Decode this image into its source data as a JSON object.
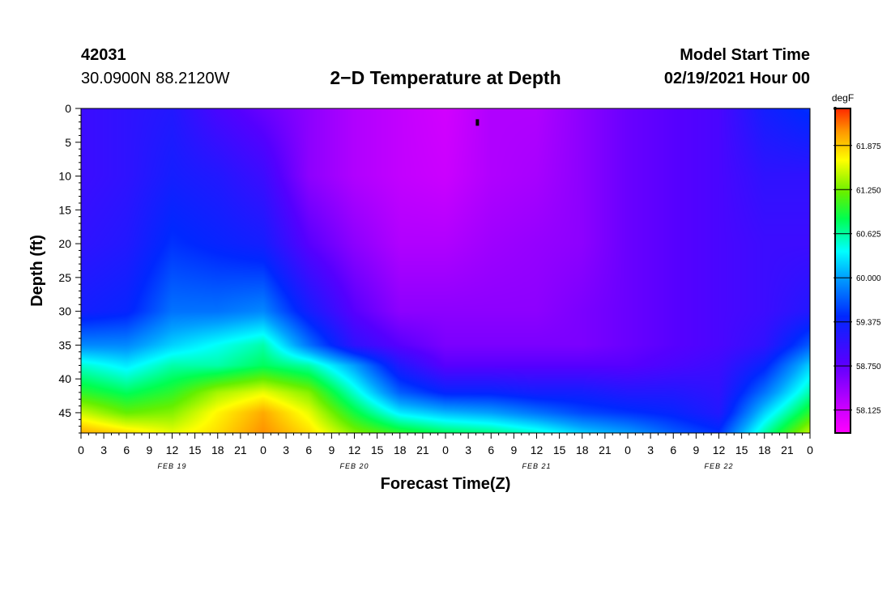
{
  "header": {
    "station_id": "42031",
    "station_location": "30.0900N 88.2120W",
    "title": "2−D Temperature at Depth",
    "start_label": "Model Start Time",
    "start_time": "02/19/2021 Hour 00"
  },
  "chart_data": {
    "type": "heatmap",
    "title": "2−D Temperature at Depth",
    "xlabel": "Forecast Time(Z)",
    "ylabel": "Depth (ft)",
    "x_hours_range": [
      0,
      96
    ],
    "x_tick_step_hours": 3,
    "x_tick_labels": [
      "0",
      "3",
      "6",
      "9",
      "12",
      "15",
      "18",
      "21",
      "0",
      "3",
      "6",
      "9",
      "12",
      "15",
      "18",
      "21",
      "0",
      "3",
      "6",
      "9",
      "12",
      "15",
      "18",
      "21",
      "0",
      "3",
      "6",
      "9",
      "12",
      "15",
      "18",
      "21",
      "0"
    ],
    "date_labels": [
      {
        "text": "FEB 19",
        "hour": 12
      },
      {
        "text": "FEB 20",
        "hour": 36
      },
      {
        "text": "FEB 21",
        "hour": 60
      },
      {
        "text": "FEB 22",
        "hour": 84
      }
    ],
    "y_range": [
      0,
      48
    ],
    "y_ticks": [
      0,
      5,
      10,
      15,
      20,
      25,
      30,
      35,
      40,
      45
    ],
    "colorbar": {
      "unit": "degF",
      "range": [
        57.8,
        62.4
      ],
      "tick_values": [
        58.125,
        58.75,
        59.375,
        60.0,
        60.625,
        61.25,
        61.875
      ],
      "tick_labels": [
        "58.125",
        "58.750",
        "59.375",
        "60.000",
        "60.625",
        "61.250",
        "61.875"
      ]
    },
    "grid_hours": [
      0,
      6,
      12,
      18,
      24,
      30,
      36,
      42,
      48,
      54,
      60,
      66,
      72,
      78,
      84,
      90,
      96
    ],
    "grid_depths": [
      0,
      10,
      20,
      30,
      35,
      38,
      42,
      45,
      48
    ],
    "values": [
      [
        59.0,
        59.1,
        59.2,
        58.9,
        58.7,
        58.5,
        58.3,
        58.2,
        58.1,
        58.3,
        58.3,
        58.5,
        58.7,
        58.8,
        58.9,
        59.3,
        59.5
      ],
      [
        59.0,
        59.1,
        59.3,
        59.2,
        59.0,
        58.5,
        58.3,
        58.2,
        58.15,
        58.3,
        58.35,
        58.5,
        58.7,
        58.8,
        58.9,
        59.1,
        59.1
      ],
      [
        59.1,
        59.2,
        59.5,
        59.4,
        59.3,
        58.8,
        58.5,
        58.3,
        58.3,
        58.4,
        58.45,
        58.5,
        58.7,
        58.8,
        58.9,
        59.0,
        59.0
      ],
      [
        59.3,
        59.4,
        59.8,
        59.8,
        59.9,
        59.3,
        58.8,
        58.5,
        58.5,
        58.5,
        58.5,
        58.6,
        58.7,
        58.8,
        58.9,
        59.0,
        59.2
      ],
      [
        59.9,
        59.9,
        60.2,
        60.4,
        60.6,
        59.8,
        59.1,
        58.8,
        58.6,
        58.6,
        58.6,
        58.6,
        58.7,
        58.8,
        58.9,
        59.1,
        59.7
      ],
      [
        60.5,
        60.3,
        60.6,
        60.6,
        60.8,
        60.6,
        60.0,
        59.2,
        58.8,
        58.8,
        58.8,
        58.8,
        58.8,
        58.9,
        59.0,
        59.4,
        60.2
      ],
      [
        61.0,
        60.8,
        61.0,
        61.4,
        61.6,
        61.3,
        60.5,
        59.7,
        59.4,
        59.4,
        59.3,
        59.3,
        59.2,
        59.2,
        59.1,
        59.8,
        60.6
      ],
      [
        61.5,
        61.2,
        61.3,
        61.7,
        62.0,
        61.6,
        60.9,
        60.3,
        60.1,
        60.0,
        59.8,
        59.6,
        59.5,
        59.4,
        59.2,
        60.2,
        61.0
      ],
      [
        62.0,
        61.8,
        61.6,
        61.8,
        62.1,
        61.8,
        61.3,
        61.0,
        60.8,
        60.7,
        60.5,
        60.2,
        60.0,
        59.7,
        59.5,
        60.6,
        61.5
      ]
    ]
  }
}
